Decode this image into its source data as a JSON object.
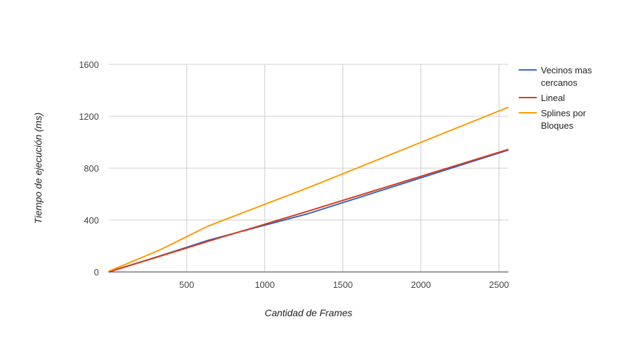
{
  "chart_data": {
    "type": "line",
    "title": "",
    "xlabel": "Cantidad de Frames",
    "ylabel": "Tiempo de ejecución (ms)",
    "xlim": [
      0,
      2560
    ],
    "ylim": [
      0,
      1600
    ],
    "x_ticks": [
      500,
      1000,
      1500,
      2000,
      2500
    ],
    "y_ticks": [
      0,
      400,
      800,
      1200,
      1600
    ],
    "grid": true,
    "legend_position": "right",
    "series": [
      {
        "name_lines": [
          "Vecinos mas",
          "cercanos"
        ],
        "color": "#3366cc",
        "points": [
          [
            0,
            0
          ],
          [
            320,
            120
          ],
          [
            640,
            245
          ],
          [
            1280,
            450
          ],
          [
            2560,
            940
          ]
        ]
      },
      {
        "name_lines": [
          "Lineal"
        ],
        "color": "#dc3912",
        "points": [
          [
            0,
            0
          ],
          [
            320,
            118
          ],
          [
            640,
            237
          ],
          [
            1280,
            470
          ],
          [
            2560,
            945
          ]
        ]
      },
      {
        "name_lines": [
          "Splines por",
          "Bloques"
        ],
        "color": "#ff9900",
        "points": [
          [
            0,
            5
          ],
          [
            320,
            165
          ],
          [
            640,
            355
          ],
          [
            1280,
            650
          ],
          [
            2560,
            1270
          ]
        ]
      }
    ]
  }
}
